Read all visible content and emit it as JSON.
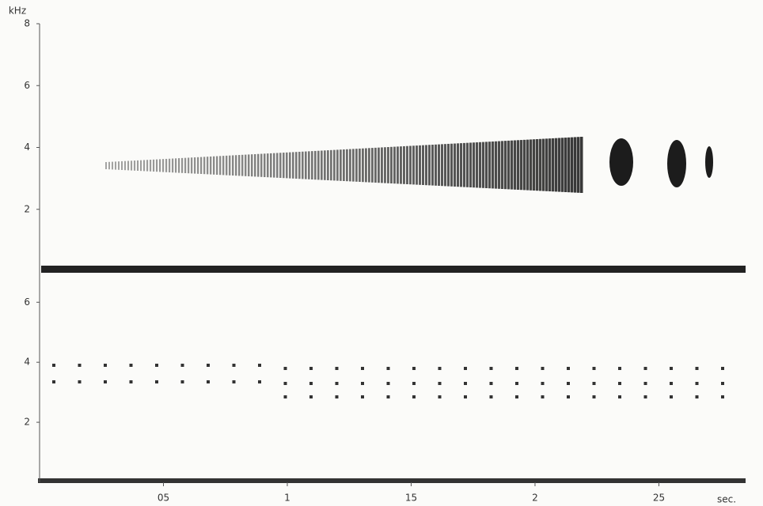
{
  "chart_data": [
    {
      "type": "spectrogram",
      "ylabel": "kHz",
      "ylim": [
        0,
        8
      ],
      "yticks": [
        2,
        4,
        6,
        8
      ],
      "xlim": [
        0,
        2.85
      ]
    },
    {
      "type": "spectrogram",
      "ylim": [
        0,
        8.3
      ],
      "yticks": [
        2,
        4,
        6
      ],
      "xlim": [
        0,
        2.85
      ],
      "xticks": [
        {
          "value": 0.5,
          "label": "05"
        },
        1,
        {
          "value": 1.5,
          "label": "15"
        },
        2,
        {
          "value": 2.5,
          "label": "25"
        }
      ],
      "xlabel": "sec."
    }
  ]
}
